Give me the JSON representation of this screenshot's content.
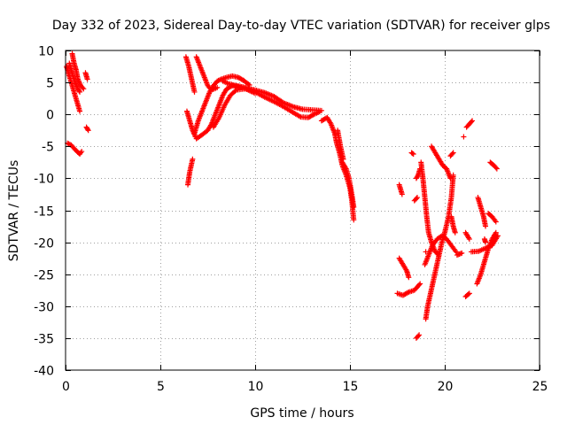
{
  "chart_data": {
    "type": "scatter",
    "title": "Day 332 of 2023, Sidereal Day-to-day VTEC variation (SDTVAR) for receiver glps",
    "xlabel": "GPS time / hours",
    "ylabel": "SDTVAR / TECUs",
    "xlim": [
      0,
      25
    ],
    "ylim": [
      -40,
      10
    ],
    "xticks": [
      0,
      5,
      10,
      15,
      20,
      25
    ],
    "yticks": [
      -40,
      -35,
      -30,
      -25,
      -20,
      -15,
      -10,
      -5,
      0,
      5,
      10
    ],
    "grid": true,
    "marker": "+",
    "color": "#ff0000",
    "segments": [
      {
        "points": [
          [
            0.05,
            7.5
          ],
          [
            0.15,
            6.5
          ],
          [
            0.3,
            5
          ],
          [
            0.45,
            3.5
          ],
          [
            0.6,
            2
          ],
          [
            0.75,
            0.5
          ]
        ]
      },
      {
        "points": [
          [
            0.2,
            8
          ],
          [
            0.35,
            6.5
          ],
          [
            0.5,
            5
          ],
          [
            0.65,
            4
          ],
          [
            0.75,
            3.5
          ]
        ]
      },
      {
        "points": [
          [
            0.35,
            9.5
          ],
          [
            0.45,
            8
          ],
          [
            0.55,
            7
          ],
          [
            0.65,
            5.5
          ],
          [
            0.8,
            4.5
          ],
          [
            0.95,
            4
          ]
        ]
      },
      {
        "points": [
          [
            1.05,
            6.5
          ],
          [
            1.15,
            5.5
          ]
        ]
      },
      {
        "points": [
          [
            1.1,
            -2
          ],
          [
            1.2,
            -2.5
          ]
        ]
      },
      {
        "points": [
          [
            0.1,
            -4.5
          ],
          [
            0.3,
            -4.8
          ],
          [
            0.5,
            -5.5
          ],
          [
            0.75,
            -6.2
          ],
          [
            0.85,
            -5.8
          ]
        ]
      },
      {
        "points": [
          [
            6.35,
            9
          ],
          [
            6.5,
            7.5
          ],
          [
            6.65,
            5.5
          ],
          [
            6.8,
            3.5
          ]
        ]
      },
      {
        "points": [
          [
            6.9,
            9
          ],
          [
            7.1,
            7.5
          ],
          [
            7.3,
            6
          ],
          [
            7.5,
            4.5
          ],
          [
            7.7,
            3.8
          ],
          [
            8.0,
            4.2
          ]
        ]
      },
      {
        "points": [
          [
            6.4,
            0.5
          ],
          [
            6.55,
            -1
          ],
          [
            6.7,
            -2.5
          ],
          [
            6.85,
            -3.5
          ]
        ]
      },
      {
        "points": [
          [
            6.45,
            -11
          ],
          [
            6.55,
            -9
          ],
          [
            6.7,
            -7
          ]
        ]
      },
      {
        "points": [
          [
            6.8,
            -3
          ],
          [
            7.0,
            -1
          ],
          [
            7.2,
            0.5
          ],
          [
            7.4,
            2
          ],
          [
            7.6,
            3.5
          ],
          [
            7.8,
            4.5
          ],
          [
            8.0,
            5.2
          ],
          [
            8.2,
            5.5
          ],
          [
            8.5,
            5.8
          ],
          [
            8.8,
            6
          ],
          [
            9.1,
            5.8
          ],
          [
            9.4,
            5.3
          ],
          [
            9.7,
            4.6
          ]
        ]
      },
      {
        "points": [
          [
            6.9,
            -3.8
          ],
          [
            7.2,
            -3.2
          ],
          [
            7.5,
            -2.5
          ],
          [
            7.7,
            -1.5
          ],
          [
            7.9,
            0
          ],
          [
            8.1,
            1.5
          ],
          [
            8.3,
            3
          ],
          [
            8.5,
            4
          ],
          [
            8.8,
            4.5
          ],
          [
            9.1,
            4.3
          ],
          [
            9.5,
            4
          ],
          [
            10.0,
            3.5
          ],
          [
            10.5,
            2.7
          ],
          [
            11.0,
            2
          ],
          [
            11.5,
            1.2
          ],
          [
            12.0,
            0.3
          ],
          [
            12.4,
            -0.4
          ],
          [
            12.8,
            -0.5
          ],
          [
            13.1,
            0
          ],
          [
            13.4,
            0.4
          ]
        ]
      },
      {
        "points": [
          [
            7.8,
            -2
          ],
          [
            8.1,
            -0.5
          ],
          [
            8.4,
            1.5
          ],
          [
            8.7,
            3
          ],
          [
            9.0,
            3.8
          ],
          [
            9.5,
            4
          ],
          [
            10.0,
            3.3
          ]
        ]
      },
      {
        "points": [
          [
            8.3,
            5.2
          ],
          [
            8.6,
            4.8
          ],
          [
            9.0,
            4.5
          ],
          [
            9.5,
            4.2
          ],
          [
            10.0,
            3.8
          ],
          [
            10.5,
            3.4
          ],
          [
            11.0,
            2.8
          ],
          [
            11.5,
            1.8
          ],
          [
            12.0,
            1.2
          ],
          [
            12.5,
            0.8
          ],
          [
            13.0,
            0.7
          ],
          [
            13.5,
            0.6
          ]
        ]
      },
      {
        "points": [
          [
            13.5,
            -1
          ],
          [
            13.8,
            -0.5
          ],
          [
            14.0,
            -1.5
          ],
          [
            14.2,
            -3
          ],
          [
            14.3,
            -4.5
          ],
          [
            14.45,
            -6
          ],
          [
            14.6,
            -8
          ],
          [
            14.8,
            -9.5
          ],
          [
            15.0,
            -11.5
          ],
          [
            15.1,
            -13.5
          ],
          [
            15.2,
            -16.5
          ]
        ]
      },
      {
        "points": [
          [
            14.6,
            -7.5
          ],
          [
            14.8,
            -8.5
          ],
          [
            14.95,
            -10
          ],
          [
            15.1,
            -12.5
          ],
          [
            15.2,
            -14.5
          ]
        ]
      },
      {
        "points": [
          [
            14.35,
            -2.5
          ],
          [
            14.5,
            -5
          ],
          [
            14.65,
            -7
          ]
        ]
      },
      {
        "points": [
          [
            17.6,
            -11
          ],
          [
            17.75,
            -12.5
          ]
        ]
      },
      {
        "points": [
          [
            17.6,
            -22.5
          ],
          [
            17.8,
            -23.5
          ],
          [
            18.0,
            -24.5
          ],
          [
            18.1,
            -25.5
          ]
        ]
      },
      {
        "points": [
          [
            17.5,
            -28
          ],
          [
            17.8,
            -28.3
          ],
          [
            18.1,
            -27.8
          ],
          [
            18.4,
            -27.5
          ],
          [
            18.7,
            -26.5
          ]
        ]
      },
      {
        "points": [
          [
            18.25,
            -6
          ],
          [
            18.35,
            -6.2
          ]
        ]
      },
      {
        "points": [
          [
            18.5,
            -10
          ],
          [
            18.6,
            -9.5
          ],
          [
            18.7,
            -8.5
          ]
        ]
      },
      {
        "points": [
          [
            18.5,
            -35
          ],
          [
            18.65,
            -34.5
          ]
        ]
      },
      {
        "points": [
          [
            18.4,
            -13.5
          ],
          [
            18.55,
            -13
          ]
        ]
      },
      {
        "points": [
          [
            19.0,
            -32
          ],
          [
            19.1,
            -30
          ],
          [
            19.25,
            -28
          ],
          [
            19.4,
            -26
          ],
          [
            19.55,
            -24
          ],
          [
            19.7,
            -22
          ],
          [
            19.85,
            -20
          ],
          [
            20.0,
            -18.5
          ],
          [
            20.2,
            -16
          ],
          [
            20.35,
            -13
          ],
          [
            20.45,
            -9.5
          ]
        ]
      },
      {
        "points": [
          [
            18.75,
            -7.5
          ],
          [
            18.85,
            -10
          ],
          [
            18.95,
            -13
          ],
          [
            19.05,
            -16
          ],
          [
            19.15,
            -18.5
          ],
          [
            19.3,
            -20
          ],
          [
            19.5,
            -21.5
          ],
          [
            19.7,
            -22
          ]
        ]
      },
      {
        "points": [
          [
            19.3,
            -5
          ],
          [
            19.5,
            -6
          ],
          [
            19.7,
            -7
          ],
          [
            19.9,
            -8
          ],
          [
            20.1,
            -8.5
          ],
          [
            20.3,
            -10
          ]
        ]
      },
      {
        "points": [
          [
            18.95,
            -23.5
          ],
          [
            19.15,
            -22
          ],
          [
            19.35,
            -20.5
          ],
          [
            19.6,
            -19.5
          ],
          [
            19.85,
            -19
          ],
          [
            20.1,
            -19.5
          ],
          [
            20.35,
            -20.5
          ],
          [
            20.6,
            -21.5
          ]
        ]
      },
      {
        "points": [
          [
            19.0,
            -21.5
          ]
        ]
      },
      {
        "points": [
          [
            20.3,
            -6.5
          ],
          [
            20.45,
            -6
          ]
        ]
      },
      {
        "points": [
          [
            20.35,
            -16
          ],
          [
            20.45,
            -17.5
          ],
          [
            20.55,
            -18.5
          ]
        ]
      },
      {
        "points": [
          [
            20.65,
            -22
          ],
          [
            20.9,
            -21.7
          ]
        ]
      },
      {
        "points": [
          [
            21.0,
            -3.5
          ]
        ]
      },
      {
        "points": [
          [
            21.15,
            -2
          ],
          [
            21.3,
            -1.5
          ],
          [
            21.45,
            -1
          ]
        ]
      },
      {
        "points": [
          [
            21.1,
            -18.5
          ],
          [
            21.3,
            -19.5
          ]
        ]
      },
      {
        "points": [
          [
            21.1,
            -28.5
          ],
          [
            21.3,
            -28
          ]
        ]
      },
      {
        "points": [
          [
            21.4,
            -21.5
          ],
          [
            21.8,
            -21.4
          ],
          [
            22.1,
            -21
          ],
          [
            22.5,
            -20.5
          ],
          [
            22.8,
            -19
          ]
        ]
      },
      {
        "points": [
          [
            21.7,
            -26.5
          ],
          [
            21.9,
            -25
          ],
          [
            22.1,
            -23
          ],
          [
            22.3,
            -21
          ],
          [
            22.5,
            -19.5
          ],
          [
            22.7,
            -18.5
          ]
        ]
      },
      {
        "points": [
          [
            21.75,
            -13
          ],
          [
            21.9,
            -14.5
          ],
          [
            22.05,
            -16
          ],
          [
            22.15,
            -17.5
          ]
        ]
      },
      {
        "points": [
          [
            22.1,
            -19.5
          ],
          [
            22.15,
            -20
          ]
        ]
      },
      {
        "points": [
          [
            22.4,
            -7.5
          ],
          [
            22.6,
            -8
          ],
          [
            22.75,
            -8.5
          ]
        ]
      },
      {
        "points": [
          [
            22.3,
            -15.5
          ],
          [
            22.5,
            -16
          ],
          [
            22.7,
            -16.8
          ]
        ]
      }
    ]
  }
}
